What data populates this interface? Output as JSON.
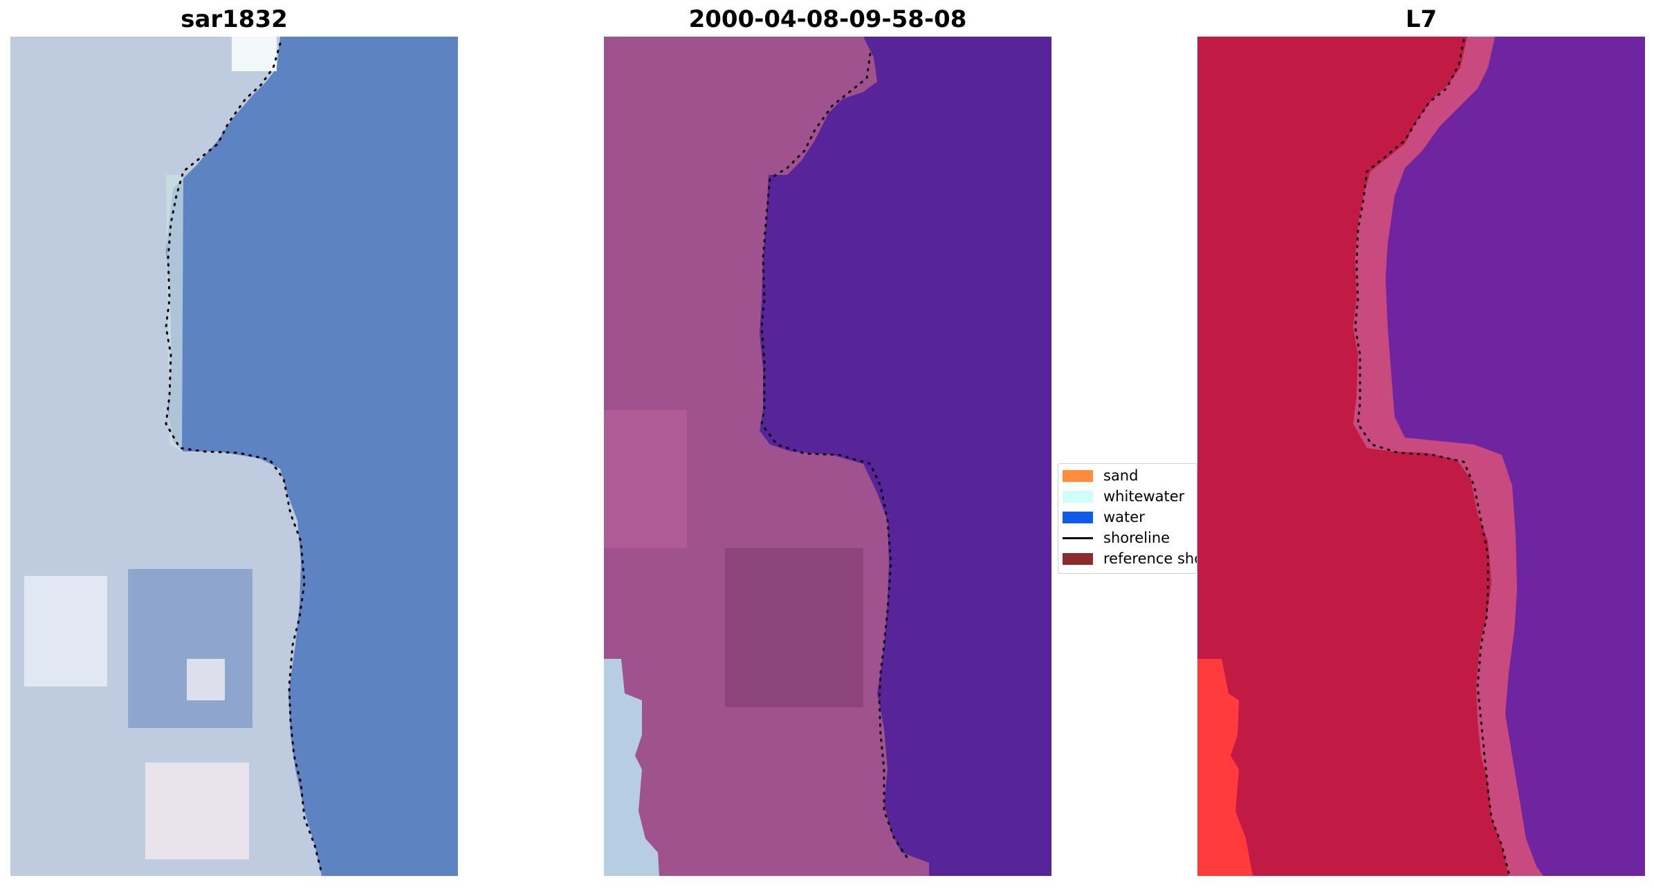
{
  "panels": [
    {
      "title": "sar1832",
      "image": "rgb satellite image"
    },
    {
      "title": "2000-04-08-09-58-08",
      "image": "classified image"
    },
    {
      "title": "L7",
      "image": "false-colour image"
    }
  ],
  "legend": {
    "items": [
      {
        "label": "sand",
        "color": "#ff8c3b"
      },
      {
        "label": "whitewater",
        "color": "#cffffb"
      },
      {
        "label": "water",
        "color": "#0f5be8"
      },
      {
        "label": "shoreline",
        "color": "#000000",
        "style": "line"
      },
      {
        "label": "reference shoreline",
        "color": "#8b2b2b"
      }
    ]
  },
  "colors": {
    "rgb_water": "#5e83c2",
    "rgb_land": "#bfcbde",
    "classified_water": "#57249a",
    "classified_land": "#a0528e",
    "classified_corner": "#b7cde2",
    "falsecolor_water": "#6e259f",
    "falsecolor_land": "#c11a45",
    "falsecolor_band": "#c94a7e",
    "falsecolor_red": "#ff3b3b"
  }
}
